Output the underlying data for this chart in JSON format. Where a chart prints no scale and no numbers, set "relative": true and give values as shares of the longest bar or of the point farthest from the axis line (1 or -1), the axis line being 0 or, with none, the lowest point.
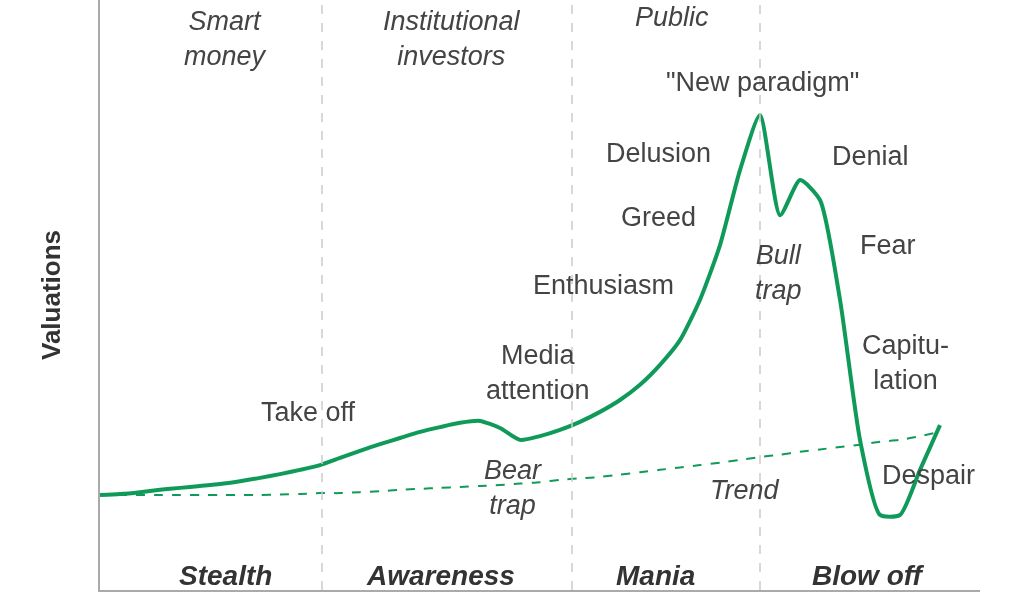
{
  "chart_data": {
    "type": "line",
    "relative": true,
    "ylabel": "Valuations",
    "categories": [
      null,
      null,
      null,
      null,
      null,
      null,
      null,
      null,
      null,
      null,
      null,
      null,
      null,
      null,
      null,
      null,
      null,
      null,
      null,
      null,
      null,
      null,
      null,
      null,
      null,
      null,
      null,
      null,
      null,
      null,
      null,
      null,
      null,
      null,
      null,
      null,
      null,
      null,
      null,
      null,
      null,
      null,
      null
    ],
    "series": [
      {
        "color": "#0f9a5a",
        "line_style": "solid",
        "values": [
          0.2,
          0.202,
          0.206,
          0.211,
          0.215,
          0.219,
          0.223,
          0.229,
          0.236,
          0.244,
          0.253,
          0.263,
          0.278,
          0.293,
          0.307,
          0.32,
          0.333,
          0.343,
          0.352,
          0.356,
          0.341,
          0.316,
          0.324,
          0.337,
          0.354,
          0.375,
          0.4,
          0.432,
          0.474,
          0.526,
          0.611,
          0.726,
          0.884,
          1.0,
          0.789,
          0.863,
          0.821,
          0.611,
          0.316,
          0.158,
          0.158,
          0.253,
          0.347
        ]
      },
      {
        "color": "#0f9a5a",
        "line_style": "dashed",
        "values": [
          0.2,
          0.2,
          0.2,
          0.2,
          0.2,
          0.2,
          0.2,
          0.2,
          0.2,
          0.201,
          0.202,
          0.204,
          0.204,
          0.206,
          0.208,
          0.211,
          0.213,
          0.215,
          0.217,
          0.219,
          0.221,
          0.224,
          0.227,
          0.232,
          0.235,
          0.238,
          0.243,
          0.248,
          0.253,
          0.258,
          0.263,
          0.268,
          0.274,
          0.28,
          0.285,
          0.291,
          0.296,
          0.301,
          0.306,
          0.312,
          0.316,
          0.324,
          0.333
        ]
      }
    ],
    "annotations": [
      "Take off",
      "Media\nattention",
      "Enthusiasm",
      "Greed",
      "Delusion",
      "\"New paradigm\"",
      "Denial",
      "Fear",
      "Capitu-\nlation",
      "Despair",
      "Bull\ntrap",
      "Bear\ntrap",
      "Trend",
      "Smart\nmoney",
      "Institutional\ninvestors",
      "Public",
      "Stealth",
      "Awareness",
      "Mania",
      "Blow off"
    ]
  }
}
